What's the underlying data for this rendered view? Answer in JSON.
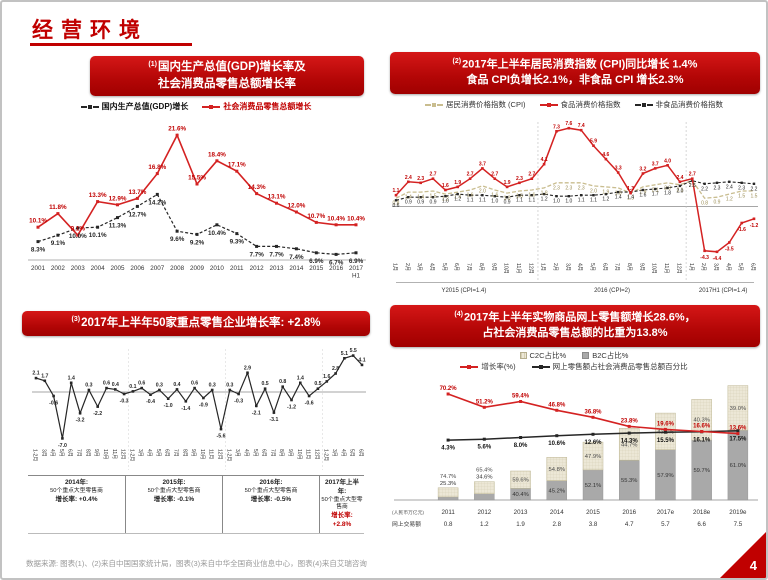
{
  "page": {
    "title": "经营环境",
    "page_number": "4",
    "footer": "数据来源: 图表(1)、(2)来自中国国家统计局，图表(3)来自中华全国商业信息中心，图表(4)来自艾瑞咨询"
  },
  "colors": {
    "banner_red": "#c00000",
    "red_series": "#d42222",
    "black_series": "#262626",
    "khaki_series": "#c9bd8f",
    "c2c_fill": "#ece7d6",
    "b2c_fill": "#a9a9a9"
  },
  "chart_data": [
    {
      "id": "gdp-retail-growth",
      "type": "line",
      "header": {
        "sup": "(1)",
        "line1": "国内生产总值(GDP)增长率及",
        "line2": "社会消费品零售总额增长率"
      },
      "legend": [
        {
          "label": "国内生产总值(GDP)增长",
          "color": "#262626",
          "dash": true,
          "text_color": "#111111"
        },
        {
          "label": "社会消费品零售总额增长",
          "color": "#d42222",
          "dash": false,
          "text_color": "#c00000"
        }
      ],
      "categories": [
        "2001",
        "2002",
        "2003",
        "2004",
        "2005",
        "2006",
        "2007",
        "2008",
        "2009",
        "2010",
        "2011",
        "2012",
        "2013",
        "2014",
        "2015",
        "2016",
        "2017 H1"
      ],
      "series": [
        {
          "name": "国内生产总值(GDP)增长",
          "unit": "%",
          "values": [
            8.3,
            9.1,
            10.0,
            10.1,
            11.3,
            12.7,
            14.2,
            9.6,
            9.2,
            10.4,
            9.3,
            7.7,
            7.7,
            7.4,
            6.9,
            6.7,
            6.9
          ]
        },
        {
          "name": "社会消费品零售总额增长",
          "unit": "%",
          "values": [
            10.1,
            11.8,
            9.1,
            13.3,
            12.9,
            13.7,
            16.8,
            21.6,
            15.5,
            18.4,
            17.1,
            14.3,
            13.1,
            12.0,
            10.7,
            10.4,
            10.4
          ]
        }
      ],
      "ylim": [
        6,
        22.5
      ],
      "grid": false,
      "legend_position": "top"
    },
    {
      "id": "cpi-monthly",
      "type": "line",
      "header": {
        "sup": "(2)",
        "line1": "2017年上半年居民消费指数 (CPI)同比增长 1.4%",
        "line2": "食品 CPI负增长2.1%，非食品 CPI 增长2.3%"
      },
      "legend": [
        {
          "label": "居民消费价格指数 (CPI)",
          "color": "#c9bd8f",
          "dash": true,
          "text_color": "#333333"
        },
        {
          "label": "食品消费价格指数",
          "color": "#d42222",
          "dash": false,
          "text_color": "#333333"
        },
        {
          "label": "非食品消费价格指数",
          "color": "#262626",
          "dash": true,
          "text_color": "#333333"
        }
      ],
      "month_labels": [
        "1月",
        "2月",
        "3月",
        "4月",
        "5月",
        "6月",
        "7月",
        "8月",
        "9月",
        "10月",
        "11月",
        "12月",
        "1月",
        "2月",
        "3月",
        "4月",
        "5月",
        "6月",
        "7月",
        "8月",
        "9月",
        "10月",
        "11月",
        "12月",
        "1月",
        "2月",
        "3月",
        "4月",
        "5月",
        "6月"
      ],
      "groups": [
        {
          "label": "Y2015 (CPI=1.4)",
          "count": 12
        },
        {
          "label": "2016 (CPI=2)",
          "count": 12
        },
        {
          "label": "2017H1 (CPI=1.4)",
          "count": 6
        }
      ],
      "series": [
        {
          "name": "居民消费价格指数 (CPI)",
          "values": [
            0.8,
            1.4,
            1.4,
            1.5,
            1.2,
            1.4,
            1.6,
            2.0,
            1.6,
            1.3,
            1.5,
            1.6,
            1.8,
            2.3,
            2.3,
            2.3,
            2.0,
            1.9,
            1.8,
            1.3,
            1.9,
            2.1,
            2.3,
            2.1,
            2.5,
            0.8,
            0.9,
            1.2,
            1.5,
            1.5
          ]
        },
        {
          "name": "食品消费价格指数",
          "values": [
            1.1,
            2.4,
            2.3,
            2.7,
            1.6,
            1.9,
            2.7,
            3.7,
            2.7,
            1.9,
            2.3,
            2.7,
            4.1,
            7.3,
            7.6,
            7.4,
            5.9,
            4.6,
            3.3,
            1.3,
            3.2,
            3.7,
            4.0,
            2.4,
            2.7,
            -4.3,
            -4.4,
            -3.5,
            -1.6,
            -1.2
          ]
        },
        {
          "name": "非食品消费价格指数",
          "values": [
            0.6,
            0.9,
            0.9,
            0.9,
            1.0,
            1.2,
            1.1,
            1.1,
            1.0,
            0.9,
            1.1,
            1.1,
            1.2,
            1.0,
            1.0,
            1.1,
            1.1,
            1.2,
            1.4,
            1.4,
            1.6,
            1.7,
            1.8,
            2.0,
            2.5,
            2.2,
            2.3,
            2.4,
            2.3,
            2.2
          ]
        }
      ],
      "ylim": [
        -5,
        8.2
      ],
      "grid": false,
      "legend_position": "top"
    },
    {
      "id": "retail-50-enterprises",
      "type": "line",
      "header": {
        "sup": "(3)",
        "line1": "2017年上半年50家重点零售企业增长率: +2.8%"
      },
      "x_labels": [
        "1-2月",
        "3月",
        "4月",
        "5月",
        "6月",
        "7月",
        "8月",
        "9月",
        "10月",
        "11月",
        "12月",
        "1-2月",
        "3月",
        "4月",
        "5月",
        "6月",
        "7月",
        "8月",
        "9月",
        "10月",
        "11月",
        "12月",
        "1-2月",
        "3月",
        "4月",
        "5月",
        "6月",
        "7月",
        "8月",
        "9月",
        "10月",
        "11月",
        "12月",
        "1-2月",
        "3月",
        "4月",
        "5月",
        "6月"
      ],
      "values": [
        2.1,
        1.7,
        -0.6,
        -7.0,
        1.4,
        -3.2,
        0.3,
        -2.2,
        0.6,
        0.4,
        -0.3,
        0.1,
        0.6,
        -0.4,
        0.3,
        -1.0,
        0.4,
        -1.4,
        0.6,
        -0.9,
        0.3,
        -5.6,
        0.3,
        -0.3,
        2.9,
        -2.1,
        0.5,
        -3.1,
        0.8,
        -1.2,
        1.4,
        -0.6,
        0.5,
        1.6,
        2.8,
        5.1,
        5.5,
        4.1
      ],
      "ylim": [
        -8,
        6.5
      ],
      "annotations": [
        {
          "year": "2014年:",
          "who": "50个重点大型零售商",
          "rate_label": "增长率:",
          "rate_value": "+0.4%",
          "highlight": false
        },
        {
          "year": "2015年:",
          "who": "50个重点大型零售商",
          "rate_label": "增长率:",
          "rate_value": "-0.1%",
          "highlight": false
        },
        {
          "year": "2016年:",
          "who": "50个重点大型零售商",
          "rate_label": "增长率:",
          "rate_value": "-0.5%",
          "highlight": false
        },
        {
          "year": "2017年上半年:",
          "who": "50个重点大型零售商",
          "rate_label": "增长率:",
          "rate_value": "+2.8%",
          "highlight": true
        }
      ]
    },
    {
      "id": "online-retail",
      "type": "bar",
      "header": {
        "sup": "(4)",
        "line1": "2017年上半年实物商品网上零售额增长28.6%，",
        "line2": "占社会消费品零售总额的比重为13.8%"
      },
      "legend": [
        {
          "label": "C2C占比%",
          "swatch": "box",
          "pattern": "check",
          "color": "#ece7d6",
          "border": "#b5ae8e"
        },
        {
          "label": "B2C占比%",
          "swatch": "box",
          "color": "#a9a9a9",
          "border": "#8a8a8a"
        },
        {
          "label": "增长率(%)",
          "color": "#d42222",
          "dash": false
        },
        {
          "label": "网上零售额占社会消费品零售总额百分比",
          "color": "#262626",
          "dash": false
        }
      ],
      "categories": [
        "2011",
        "2012",
        "2013",
        "2014",
        "2015",
        "2016",
        "2017e",
        "2018e",
        "2019e"
      ],
      "bars": {
        "volume": [
          0.8,
          1.2,
          1.9,
          2.8,
          3.8,
          4.7,
          5.7,
          6.6,
          7.5
        ],
        "c2c_pct": [
          74.7,
          65.4,
          59.6,
          54.8,
          47.9,
          44.7,
          42.1,
          40.3,
          39.0
        ],
        "b2c_pct": [
          25.3,
          34.6,
          40.4,
          45.2,
          52.1,
          55.3,
          57.9,
          59.7,
          61.0
        ]
      },
      "lines": {
        "growth_pct": [
          70.2,
          51.2,
          59.4,
          46.8,
          36.8,
          23.8,
          19.6,
          16.6,
          13.6
        ],
        "share_pct": [
          4.3,
          5.6,
          8.0,
          10.6,
          12.6,
          14.3,
          15.5,
          16.1,
          17.5
        ]
      },
      "volume_row_label": "网上交易额",
      "volume_unit": "(人民币万亿元)",
      "bar_ylim": [
        0,
        8
      ],
      "line_ylim": [
        0,
        100
      ],
      "legend_position": "top"
    }
  ]
}
